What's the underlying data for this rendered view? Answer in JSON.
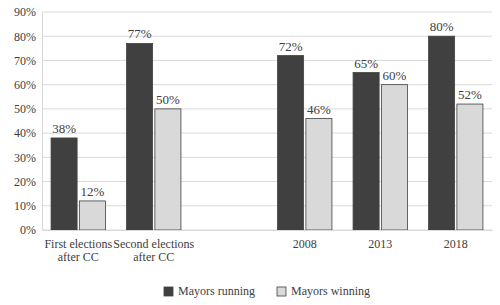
{
  "chart_data": {
    "type": "bar",
    "categories": [
      "First elections after CC",
      "Second elections after CC",
      "2008",
      "2013",
      "2018"
    ],
    "series": [
      {
        "name": "Mayors running",
        "color": "#404040",
        "values": [
          38,
          77,
          72,
          65,
          80
        ],
        "value_labels": [
          "38%",
          "77%",
          "72%",
          "65%",
          "80%"
        ]
      },
      {
        "name": "Mayors winning",
        "color": "#d9d9d9",
        "values": [
          12,
          50,
          46,
          60,
          52
        ],
        "value_labels": [
          "12%",
          "50%",
          "46%",
          "60%",
          "52%"
        ]
      }
    ],
    "ylim": [
      0,
      90
    ],
    "yticks": [
      {
        "value": 0,
        "label": "0%"
      },
      {
        "value": 10,
        "label": "10%"
      },
      {
        "value": 20,
        "label": "20%"
      },
      {
        "value": 30,
        "label": "30%"
      },
      {
        "value": 40,
        "label": "40%"
      },
      {
        "value": 50,
        "label": "50%"
      },
      {
        "value": 60,
        "label": "60%"
      },
      {
        "value": 70,
        "label": "70%"
      },
      {
        "value": 80,
        "label": "80%"
      },
      {
        "value": 90,
        "label": "90%"
      }
    ],
    "grid": true,
    "legend": "bottom",
    "data_labels": true
  }
}
